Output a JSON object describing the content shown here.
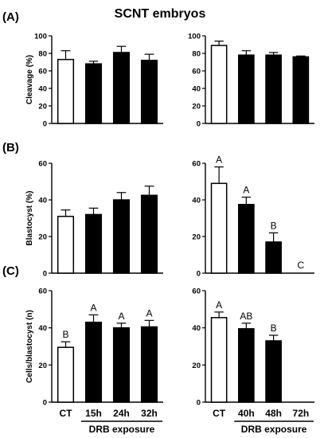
{
  "figure": {
    "title": "SCNT embryos",
    "group_label": "DRB exposure"
  },
  "chart_data": [
    {
      "type": "bar",
      "panel": "(A)",
      "ylabel": "Cleavage (%)",
      "ylim": [
        0,
        100
      ],
      "yticks": [
        "0",
        "20",
        "40",
        "60",
        "80",
        "100"
      ],
      "categories": [
        "CT",
        "15h",
        "24h",
        "32h"
      ],
      "values": [
        73,
        68,
        81,
        72
      ],
      "errors": [
        10,
        3,
        7,
        7
      ],
      "fill": [
        "open",
        "solid",
        "solid",
        "solid"
      ],
      "letters": [
        "",
        "",
        "",
        ""
      ]
    },
    {
      "type": "bar",
      "panel": "",
      "ylabel": "",
      "ylim": [
        0,
        100
      ],
      "yticks": [
        "0",
        "20",
        "40",
        "60",
        "80",
        "100"
      ],
      "categories": [
        "CT",
        "40h",
        "48h",
        "72h"
      ],
      "values": [
        89,
        78,
        78,
        76
      ],
      "errors": [
        5,
        5,
        3,
        1
      ],
      "fill": [
        "open",
        "solid",
        "solid",
        "solid"
      ],
      "letters": [
        "",
        "",
        "",
        ""
      ]
    },
    {
      "type": "bar",
      "panel": "(B)",
      "ylabel": "Blastocyst (%)",
      "ylim": [
        0,
        60
      ],
      "yticks": [
        "0",
        "20",
        "40",
        "60"
      ],
      "categories": [
        "CT",
        "15h",
        "24h",
        "32h"
      ],
      "values": [
        31,
        32,
        40,
        42.5
      ],
      "errors": [
        3.5,
        3.5,
        4,
        5
      ],
      "fill": [
        "open",
        "solid",
        "solid",
        "solid"
      ],
      "letters": [
        "",
        "",
        "",
        ""
      ]
    },
    {
      "type": "bar",
      "panel": "",
      "ylabel": "",
      "ylim": [
        0,
        60
      ],
      "yticks": [
        "0",
        "20",
        "40",
        "60"
      ],
      "categories": [
        "CT",
        "40h",
        "48h",
        "72h"
      ],
      "values": [
        49,
        37.5,
        17,
        0
      ],
      "errors": [
        9,
        4,
        5,
        0
      ],
      "fill": [
        "open",
        "solid",
        "solid",
        "solid"
      ],
      "letters": [
        "A",
        "A",
        "B",
        "C"
      ]
    },
    {
      "type": "bar",
      "panel": "(C)",
      "ylabel": "Cells/blastocyst (n)",
      "ylim": [
        0,
        60
      ],
      "yticks": [
        "0",
        "20",
        "40",
        "60"
      ],
      "categories": [
        "CT",
        "15h",
        "24h",
        "32h"
      ],
      "values": [
        29.5,
        43,
        40,
        40.5
      ],
      "errors": [
        3,
        4,
        2.5,
        3.5
      ],
      "fill": [
        "open",
        "solid",
        "solid",
        "solid"
      ],
      "letters": [
        "B",
        "A",
        "A",
        "A"
      ]
    },
    {
      "type": "bar",
      "panel": "",
      "ylabel": "",
      "ylim": [
        0,
        60
      ],
      "yticks": [
        "0",
        "20",
        "40",
        "60"
      ],
      "categories": [
        "CT",
        "40h",
        "48h",
        "72h"
      ],
      "values": [
        45.5,
        39.5,
        33,
        0
      ],
      "errors": [
        3,
        3,
        3,
        0
      ],
      "fill": [
        "open",
        "solid",
        "solid",
        "solid"
      ],
      "letters": [
        "A",
        "AB",
        "B",
        ""
      ]
    }
  ]
}
